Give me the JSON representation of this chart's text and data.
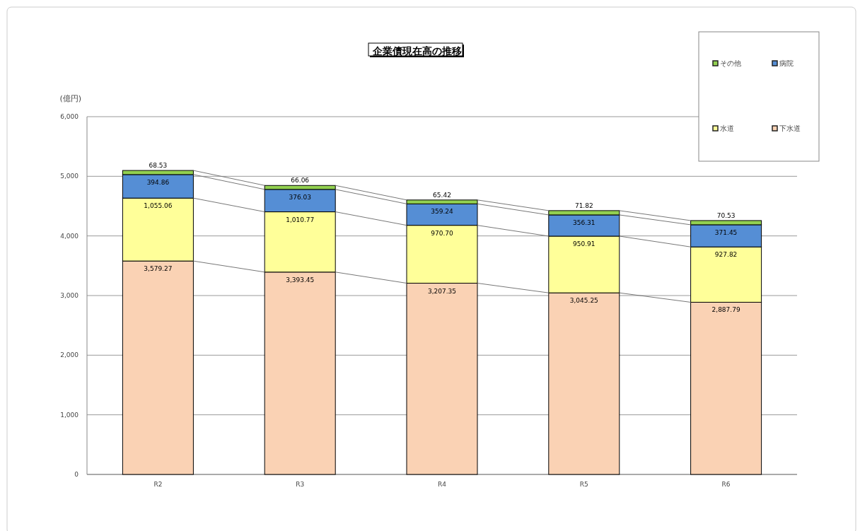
{
  "chart_data": {
    "type": "bar",
    "title": "企業債現在高の推移",
    "ylabel": "(億円)",
    "stacked": true,
    "legend": "top right",
    "grid": "y",
    "categories": [
      "R2",
      "R3",
      "R4",
      "R5",
      "R6"
    ],
    "ylim": [
      0,
      6000
    ],
    "yticks": [
      0,
      {
        "value": 1000,
        "label": "1,000"
      },
      {
        "value": 2000,
        "label": "2,000"
      },
      {
        "value": 3000,
        "label": "3,000"
      },
      {
        "value": 4000,
        "label": "4,000"
      },
      {
        "value": 5000,
        "label": "5,000"
      },
      {
        "value": 6000,
        "label": "6,000"
      }
    ],
    "series": [
      {
        "name": "下水道",
        "color": "#fad2b4",
        "values": [
          3579.27,
          3393.45,
          3207.35,
          3045.25,
          2887.79
        ],
        "value_labels": [
          "3,579.27",
          "3,393.45",
          "3,207.35",
          "3,045.25",
          "2,887.79"
        ]
      },
      {
        "name": "水道",
        "color": "#ffff99",
        "values": [
          1055.06,
          1010.77,
          970.7,
          950.91,
          927.82
        ],
        "value_labels": [
          "1,055.06",
          "1,010.77",
          "970.70",
          "950.91",
          "927.82"
        ]
      },
      {
        "name": "病院",
        "color": "#558ed5",
        "values": [
          394.86,
          376.03,
          359.24,
          356.31,
          371.45
        ],
        "value_labels": [
          "394.86",
          "376.03",
          "359.24",
          "356.31",
          "371.45"
        ]
      },
      {
        "name": "その他",
        "color": "#92d050",
        "values": [
          68.53,
          66.06,
          65.42,
          71.82,
          70.53
        ],
        "value_labels": [
          "68.53",
          "66.06",
          "65.42",
          "71.82",
          "70.53"
        ]
      }
    ]
  }
}
